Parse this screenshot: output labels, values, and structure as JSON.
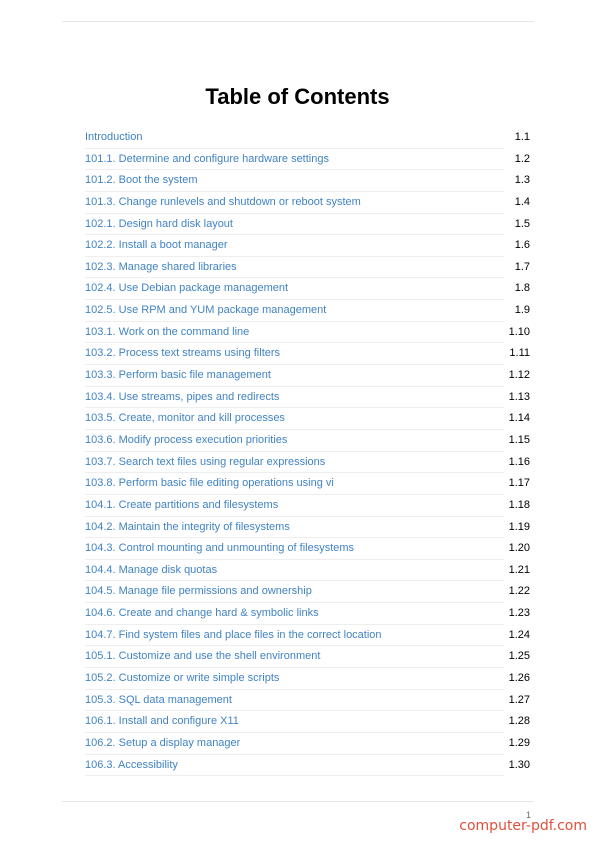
{
  "title": "Table of Contents",
  "toc": [
    {
      "label": "Introduction",
      "number": "1.1"
    },
    {
      "label": "101.1. Determine and configure hardware settings",
      "number": "1.2"
    },
    {
      "label": "101.2. Boot the system",
      "number": "1.3"
    },
    {
      "label": "101.3. Change runlevels and shutdown or reboot system",
      "number": "1.4"
    },
    {
      "label": "102.1. Design hard disk layout",
      "number": "1.5"
    },
    {
      "label": "102.2. Install a boot manager",
      "number": "1.6"
    },
    {
      "label": "102.3. Manage shared libraries",
      "number": "1.7"
    },
    {
      "label": "102.4. Use Debian package management",
      "number": "1.8"
    },
    {
      "label": "102.5. Use RPM and YUM package management",
      "number": "1.9"
    },
    {
      "label": "103.1. Work on the command line",
      "number": "1.10"
    },
    {
      "label": "103.2. Process text streams using filters",
      "number": "1.11"
    },
    {
      "label": "103.3. Perform basic file management",
      "number": "1.12"
    },
    {
      "label": "103.4. Use streams, pipes and redirects",
      "number": "1.13"
    },
    {
      "label": "103.5. Create, monitor and kill processes",
      "number": "1.14"
    },
    {
      "label": "103.6. Modify process execution priorities",
      "number": "1.15"
    },
    {
      "label": "103.7. Search text files using regular expressions",
      "number": "1.16"
    },
    {
      "label": "103.8. Perform basic file editing operations using vi",
      "number": "1.17"
    },
    {
      "label": "104.1. Create partitions and filesystems",
      "number": "1.18"
    },
    {
      "label": "104.2. Maintain the integrity of filesystems",
      "number": "1.19"
    },
    {
      "label": "104.3. Control mounting and unmounting of filesystems",
      "number": "1.20"
    },
    {
      "label": "104.4. Manage disk quotas",
      "number": "1.21"
    },
    {
      "label": "104.5. Manage file permissions and ownership",
      "number": "1.22"
    },
    {
      "label": "104.6. Create and change hard & symbolic links",
      "number": "1.23"
    },
    {
      "label": "104.7. Find system files and place files in the correct location",
      "number": "1.24"
    },
    {
      "label": "105.1. Customize and use the shell environment",
      "number": "1.25"
    },
    {
      "label": "105.2. Customize or write simple scripts",
      "number": "1.26"
    },
    {
      "label": "105.3. SQL data management",
      "number": "1.27"
    },
    {
      "label": "106.1. Install and configure X11",
      "number": "1.28"
    },
    {
      "label": "106.2. Setup a display manager",
      "number": "1.29"
    },
    {
      "label": "106.3. Accessibility",
      "number": "1.30"
    }
  ],
  "footer": {
    "page_number": "1",
    "watermark": "computer-pdf.com"
  },
  "colors": {
    "link": "#4183c4",
    "watermark": "#e0503a"
  }
}
